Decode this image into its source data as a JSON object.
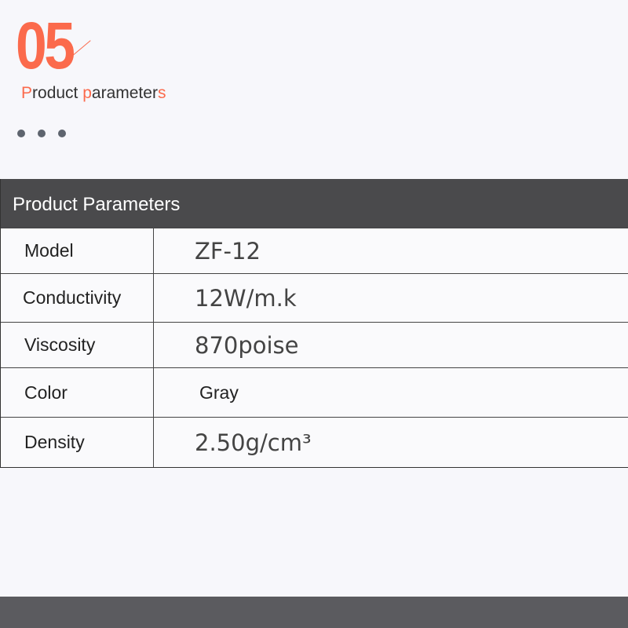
{
  "section": {
    "number": "05",
    "subtitle_parts": [
      {
        "t": "P",
        "accent": true
      },
      {
        "t": "roduct ",
        "accent": false
      },
      {
        "t": "p",
        "accent": true
      },
      {
        "t": "arameter",
        "accent": false
      },
      {
        "t": "s",
        "accent": true
      }
    ],
    "accent_color": "#fb6a4c"
  },
  "table": {
    "title": "Product Parameters",
    "rows": [
      {
        "key": "Model",
        "value": "ZF-12"
      },
      {
        "key": "Conductivity",
        "value": "12W/m.k"
      },
      {
        "key": "Viscosity",
        "value": "870poise"
      },
      {
        "key": "Color",
        "value": "Gray"
      },
      {
        "key": "Density",
        "value": "2.50g/cm³"
      }
    ]
  }
}
